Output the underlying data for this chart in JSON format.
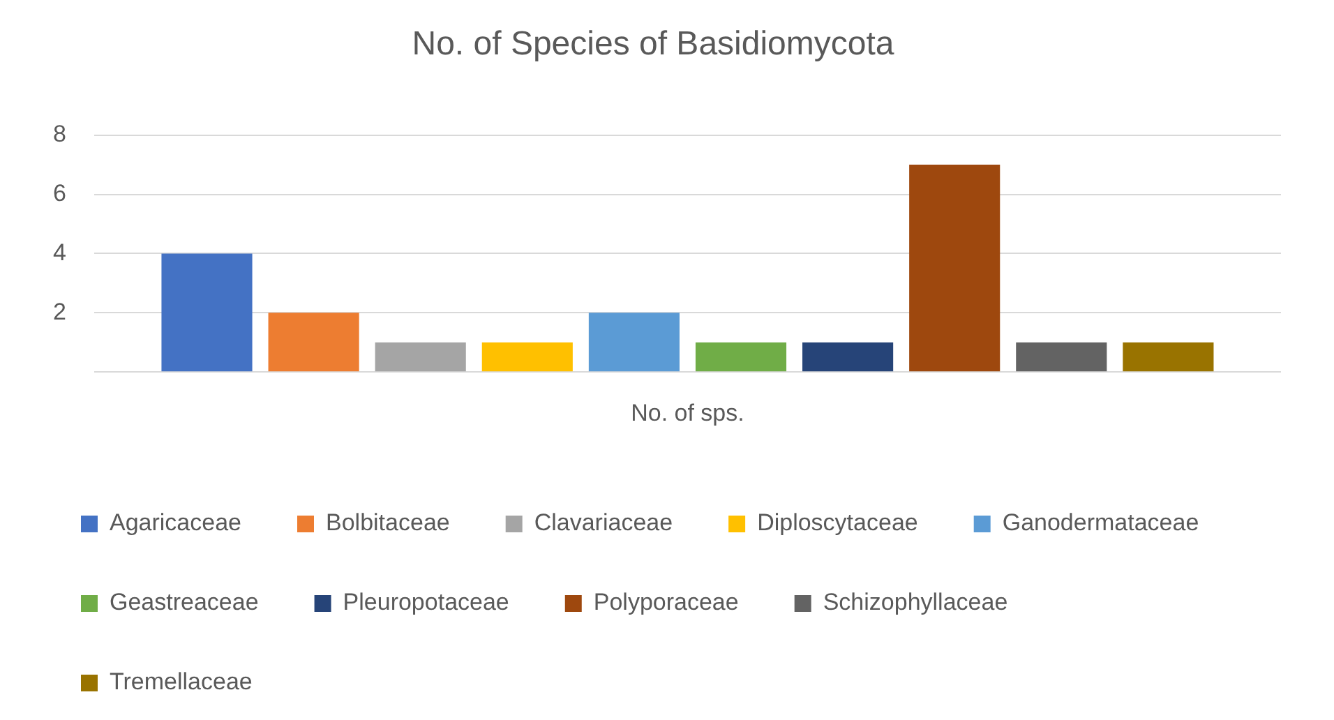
{
  "chart_data": {
    "type": "bar",
    "title": "No. of Species of Basidiomycota",
    "categories": [
      "No. of sps."
    ],
    "series": [
      {
        "name": "Agaricaceae",
        "color": "#4472c4",
        "values": [
          4
        ]
      },
      {
        "name": "Bolbitaceae",
        "color": "#ed7d31",
        "values": [
          2
        ]
      },
      {
        "name": "Clavariaceae",
        "color": "#a5a5a5",
        "values": [
          1
        ]
      },
      {
        "name": "Diploscytaceae",
        "color": "#ffc000",
        "values": [
          1
        ]
      },
      {
        "name": "Ganodermataceae",
        "color": "#5b9bd5",
        "values": [
          2
        ]
      },
      {
        "name": "Geastreaceae",
        "color": "#70ad47",
        "values": [
          1
        ]
      },
      {
        "name": "Pleuropotaceae",
        "color": "#264478",
        "values": [
          1
        ]
      },
      {
        "name": "Polyporaceae",
        "color": "#9e480e",
        "values": [
          7
        ]
      },
      {
        "name": "Schizophyllaceae",
        "color": "#636363",
        "values": [
          1
        ]
      },
      {
        "name": "Tremellaceae",
        "color": "#997300",
        "values": [
          1
        ]
      }
    ],
    "ylim": [
      0,
      8
    ],
    "yticks": [
      {
        "value": 0,
        "label": null
      },
      2,
      4,
      6,
      8
    ],
    "grid": "y",
    "legend": "bottom"
  }
}
